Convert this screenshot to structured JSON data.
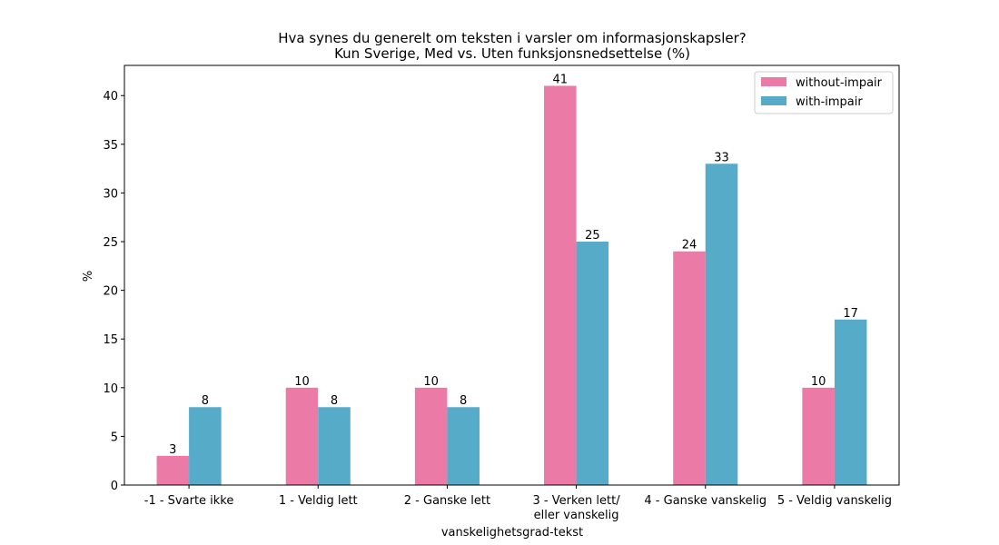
{
  "chart_data": {
    "type": "bar",
    "title": "Hva synes du generelt om teksten i varsler om informasjonskapsler?",
    "subtitle": "Kun Sverige, Med vs. Uten funksjonsnedsettelse (%)",
    "xlabel": "vanskelighetsgrad-tekst",
    "ylabel": "%",
    "categories": [
      [
        "-1 - Svarte ikke"
      ],
      [
        "1 - Veldig lett"
      ],
      [
        "2 - Ganske lett"
      ],
      [
        "3 - Verken lett/",
        "eller vanskelig"
      ],
      [
        "4 - Ganske vanskelig"
      ],
      [
        "5 - Veldig vanskelig"
      ]
    ],
    "series": [
      {
        "name": "without-impair",
        "color": "#eb7aa6",
        "values": [
          3,
          10,
          10,
          41,
          24,
          10
        ]
      },
      {
        "name": "with-impair",
        "color": "#56abc9",
        "values": [
          8,
          8,
          8,
          25,
          33,
          17
        ]
      }
    ],
    "ylim": [
      0,
      43.1
    ],
    "yticks": [
      0,
      5,
      10,
      15,
      20,
      25,
      30,
      35,
      40
    ],
    "grid": false,
    "legend_position": "top-right"
  }
}
